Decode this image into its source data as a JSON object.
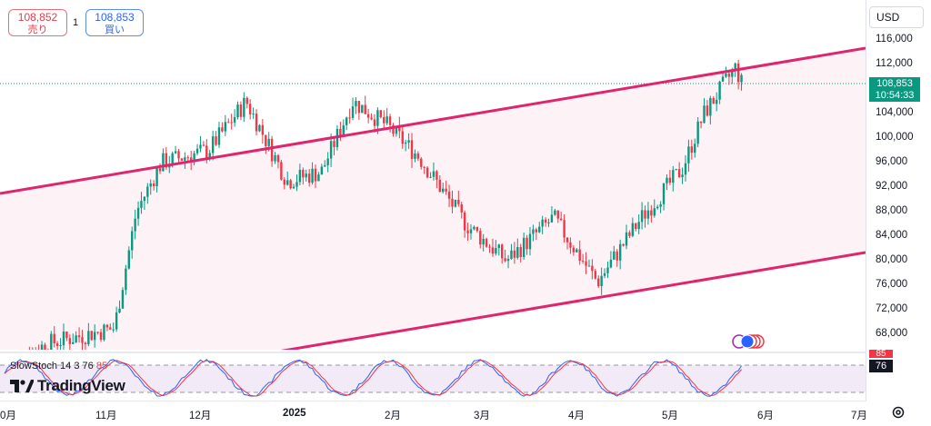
{
  "quote": {
    "sell_price": "108,852",
    "sell_label": "売り",
    "spread": "1",
    "buy_price": "108,853",
    "buy_label": "買い"
  },
  "currency": "USD",
  "last_price": {
    "value": "108,853",
    "countdown": "10:54:33",
    "color": "#089981"
  },
  "y_axis_labels": [
    "116,000",
    "112,000",
    "108,000",
    "104,000",
    "100,000",
    "96,000",
    "92,000",
    "88,000",
    "84,000",
    "80,000",
    "76,000",
    "72,000",
    "68,000"
  ],
  "x_axis_labels": [
    "0月",
    "11月",
    "12月",
    "2025",
    "2月",
    "3月",
    "4月",
    "5月",
    "6月",
    "7月"
  ],
  "oscillator": {
    "name": "SlowStoch",
    "params": "14 3",
    "k_value": "76",
    "d_value": "85",
    "tag_red": "85",
    "tag_black": "76"
  },
  "branding": {
    "logo_text": "TradingView"
  },
  "colors": {
    "up": "#089981",
    "down": "#f23645",
    "channel": "#e0246e",
    "channel_fill": "#fdf2f6",
    "osc_fill": "#f3eaf7"
  },
  "chart_data": {
    "type": "candlestick",
    "title": "",
    "ylim": [
      64000,
      118000
    ],
    "y_ticks": [
      116000,
      112000,
      108000,
      104000,
      100000,
      96000,
      92000,
      88000,
      84000,
      80000,
      76000,
      72000,
      68000
    ],
    "x_labels": [
      "0月",
      "11月",
      "12月",
      "2025",
      "2月",
      "3月",
      "4月",
      "5月",
      "6月",
      "7月"
    ],
    "close_path": [
      {
        "t": "2024-10-01",
        "v": 63000
      },
      {
        "t": "2024-10-15",
        "v": 66500
      },
      {
        "t": "2024-11-05",
        "v": 69000
      },
      {
        "t": "2024-11-12",
        "v": 88000
      },
      {
        "t": "2024-11-20",
        "v": 96000
      },
      {
        "t": "2024-12-05",
        "v": 98000
      },
      {
        "t": "2024-12-17",
        "v": 106000
      },
      {
        "t": "2024-12-30",
        "v": 93000
      },
      {
        "t": "2025-01-10",
        "v": 94500
      },
      {
        "t": "2025-01-20",
        "v": 106000
      },
      {
        "t": "2025-01-31",
        "v": 102000
      },
      {
        "t": "2025-02-10",
        "v": 97000
      },
      {
        "t": "2025-02-25",
        "v": 86000
      },
      {
        "t": "2025-03-10",
        "v": 80000
      },
      {
        "t": "2025-03-25",
        "v": 87000
      },
      {
        "t": "2025-04-08",
        "v": 76500
      },
      {
        "t": "2025-04-22",
        "v": 87000
      },
      {
        "t": "2025-05-05",
        "v": 95000
      },
      {
        "t": "2025-05-12",
        "v": 104000
      },
      {
        "t": "2025-05-22",
        "v": 111500
      },
      {
        "t": "2025-05-24",
        "v": 108853
      }
    ],
    "channel_upper": [
      {
        "t": "2024-10-01",
        "v": 91000
      },
      {
        "t": "2025-07-01",
        "v": 114000
      }
    ],
    "channel_lower": [
      {
        "t": "2024-12-25",
        "v": 64000
      },
      {
        "t": "2025-07-01",
        "v": 81000
      }
    ],
    "last_price": 108853,
    "stochastic": {
      "k": 76,
      "d": 85,
      "bands": [
        80,
        20
      ]
    }
  }
}
